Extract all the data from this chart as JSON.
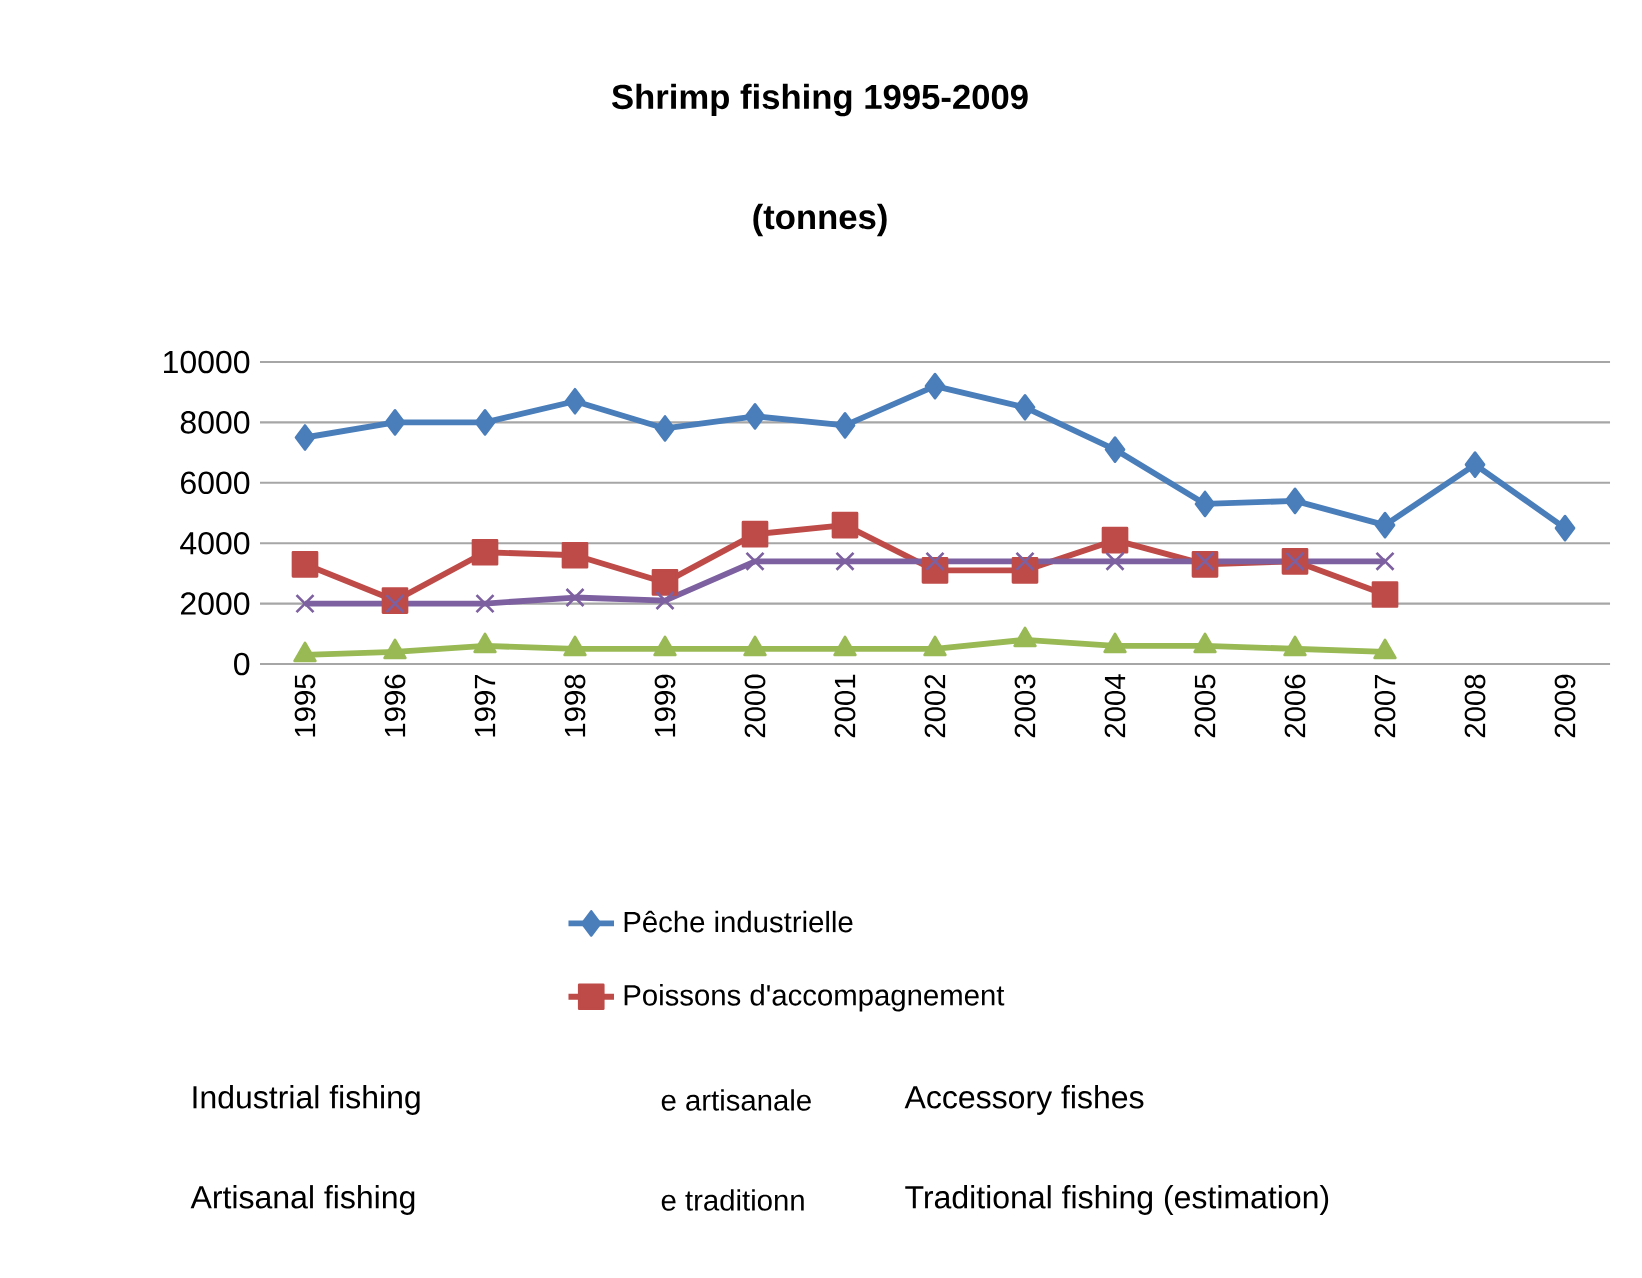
{
  "chart_data": {
    "type": "line",
    "title": "Shrimp fishing 1995-2009",
    "subtitle": "(tonnes)",
    "categories": [
      "1995",
      "1996",
      "1997",
      "1998",
      "1999",
      "2000",
      "2001",
      "2002",
      "2003",
      "2004",
      "2005",
      "2006",
      "2007",
      "2008",
      "2009"
    ],
    "series": [
      {
        "name": "Pêche industrielle",
        "color": "#4a7ebb",
        "marker": "diamond",
        "values": [
          7500,
          8000,
          8000,
          8700,
          7800,
          8200,
          7900,
          9200,
          8500,
          7100,
          5300,
          5400,
          4600,
          6600,
          4500
        ]
      },
      {
        "name": "Poissons d'accompagnement",
        "color": "#be4b48",
        "marker": "square",
        "values": [
          3300,
          2100,
          3700,
          3600,
          2700,
          4300,
          4600,
          3100,
          3100,
          4100,
          3300,
          3400,
          2300,
          null,
          null
        ]
      },
      {
        "color": "#7d60a0",
        "marker": "cross",
        "values": [
          2000,
          2000,
          2000,
          2200,
          2100,
          3400,
          3400,
          3400,
          3400,
          3400,
          3400,
          3400,
          3400,
          null,
          null
        ]
      },
      {
        "color": "#98b954",
        "marker": "triangle",
        "values": [
          300,
          400,
          600,
          500,
          500,
          500,
          500,
          500,
          800,
          600,
          600,
          500,
          400,
          null,
          null
        ]
      }
    ],
    "ylim": [
      0,
      10000
    ],
    "yticks": [
      0,
      2000,
      4000,
      6000,
      8000,
      10000
    ],
    "grid": "y",
    "legend": "bottom",
    "annotations": [
      "Industrial fishing",
      "e artisanale",
      "Accessory fishes",
      "Artisanal fishing",
      "e traditionn",
      "Traditional fishing (estimation)"
    ]
  }
}
